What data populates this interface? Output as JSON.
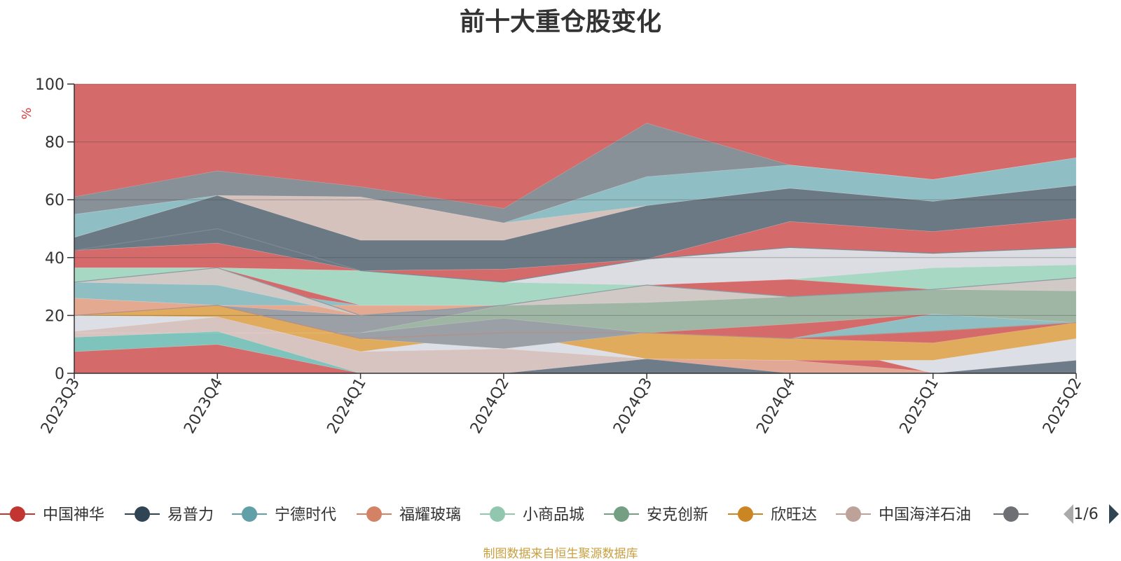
{
  "chart_data": {
    "type": "area",
    "title": "前十大重仓股变化",
    "ylabel": "%",
    "xlabel": "",
    "ylim": [
      0,
      100
    ],
    "yticks": [
      "0",
      "20",
      "40",
      "60",
      "80",
      "100"
    ],
    "categories": [
      "2023Q3",
      "2023Q4",
      "2024Q1",
      "2024Q2",
      "2024Q3",
      "2024Q4",
      "2025Q1",
      "2025Q2"
    ],
    "grid": true,
    "legend_position": "bottom",
    "layers": [
      {
        "color": "#d46a6a",
        "lower": [
          7.5,
          10,
          0,
          0,
          0,
          0,
          0,
          0
        ],
        "upper": [
          7.5,
          10,
          0,
          0,
          0,
          0,
          0,
          0
        ]
      },
      {
        "color": "#7fc4bc",
        "lower": [
          7.5,
          10,
          0,
          0,
          0,
          0,
          0,
          0
        ],
        "upper": [
          12.5,
          14.5,
          7.5,
          0,
          0,
          0,
          0,
          0
        ]
      },
      {
        "color": "#d7c3bf",
        "lower": [
          12.5,
          14.5,
          0,
          0,
          5,
          4.5,
          0,
          0
        ],
        "upper": [
          14.5,
          19.5,
          7.5,
          8.5,
          5,
          4.5,
          0,
          0
        ]
      },
      {
        "color": "#e2a896",
        "lower": [
          0,
          0,
          0,
          0,
          0,
          0,
          0,
          0
        ],
        "upper": [
          0,
          0,
          0,
          0,
          5,
          4.5,
          0.5,
          0
        ]
      },
      {
        "color": "#6e7b88",
        "lower": [
          0,
          0,
          0,
          0,
          0,
          0,
          0,
          0
        ],
        "upper": [
          0,
          0,
          0,
          0,
          5,
          0,
          0,
          4.5
        ]
      },
      {
        "color": "#dcdfe5",
        "lower": [
          14.5,
          19.5,
          7.5,
          8.5,
          5,
          12,
          0,
          4.5
        ],
        "upper": [
          20,
          19.5,
          7.5,
          14,
          5,
          12,
          4.5,
          12
        ]
      },
      {
        "color": "#e0ab5c",
        "lower": [
          20,
          19.5,
          7.5,
          14,
          5,
          4.5,
          4.5,
          12
        ],
        "upper": [
          20,
          23.5,
          12,
          14,
          14,
          12,
          10.5,
          17.5
        ]
      },
      {
        "color": "#9aa0a6",
        "lower": [
          20,
          23.5,
          12,
          8.5,
          14,
          12,
          14.5,
          17.5
        ],
        "upper": [
          26,
          23.5,
          20,
          23.5,
          14,
          12,
          14.5,
          17.5
        ]
      },
      {
        "color": "#e3a991",
        "lower": [
          20,
          23.5,
          20,
          23.5,
          14,
          12,
          14.5,
          17.5
        ],
        "upper": [
          26,
          23.5,
          23.5,
          23.5,
          14,
          12,
          14.5,
          17.5
        ]
      },
      {
        "color": "#90bfc3",
        "lower": [
          26,
          23.5,
          23.5,
          23.5,
          14,
          12,
          14.5,
          17.5
        ],
        "upper": [
          31.5,
          30.5,
          23.5,
          23.5,
          14,
          12,
          20.5,
          17.5
        ]
      },
      {
        "color": "#9fb6a5",
        "lower": [
          14,
          14,
          14,
          19,
          14,
          17,
          20.5,
          17.5
        ],
        "upper": [
          14,
          14,
          14,
          23.5,
          24.5,
          26.5,
          29,
          28.5
        ]
      },
      {
        "color": "#d0c9c5",
        "lower": [
          31.5,
          30.5,
          20,
          23.5,
          24.5,
          26.5,
          29,
          28.5
        ],
        "upper": [
          31.5,
          36.5,
          20,
          23.5,
          30.5,
          26.5,
          29,
          33
        ]
      },
      {
        "color": "#a6d8c4",
        "lower": [
          31.5,
          36.5,
          23.5,
          23.5,
          30.5,
          32.5,
          29,
          33
        ],
        "upper": [
          36.5,
          36.5,
          35.5,
          31.5,
          30.5,
          32.5,
          36.5,
          37.5
        ]
      },
      {
        "color": "#dbdde2",
        "lower": [
          36.5,
          36.5,
          35.5,
          31.5,
          30.5,
          32.5,
          36.5,
          37.5
        ],
        "upper": [
          36.5,
          36.5,
          35.5,
          31.5,
          39.5,
          43.5,
          41.5,
          43.5
        ]
      },
      {
        "color": "#d46a6a",
        "lower": [
          36.5,
          36.5,
          35.5,
          31.5,
          39.5,
          43.5,
          41.5,
          43.5
        ],
        "upper": [
          42.5,
          45,
          35.5,
          36,
          39.5,
          52.5,
          49,
          53.5
        ]
      },
      {
        "color": "#6a7984",
        "lower": [
          42.5,
          45,
          35.5,
          36,
          39.5,
          52.5,
          49,
          53.5
        ],
        "upper": [
          47,
          61.5,
          46,
          46,
          58,
          64,
          59.5,
          65
        ]
      },
      {
        "color": "#d5c2bd",
        "lower": [
          47,
          61.5,
          46,
          46,
          58,
          64,
          59.5,
          65
        ],
        "upper": [
          47,
          61.5,
          61,
          52,
          58,
          64,
          59.5,
          65
        ]
      },
      {
        "color": "#8fbfc4",
        "lower": [
          47,
          61.5,
          61,
          52,
          58,
          64,
          59.5,
          65
        ],
        "upper": [
          55,
          61.5,
          61,
          52,
          68,
          72,
          67,
          74.5
        ]
      },
      {
        "color": "#889098",
        "lower": [
          55,
          61.5,
          61,
          52,
          68,
          72,
          67,
          74.5
        ],
        "upper": [
          61,
          70,
          64.5,
          57,
          86.5,
          72,
          67,
          74.5
        ]
      }
    ],
    "lines": [
      {
        "color": "#7d8a94",
        "values": [
          42.5,
          50,
          35.5,
          31.5,
          39.5,
          43.5,
          41.5,
          43.5
        ]
      },
      {
        "color": "#b58f86",
        "values": [
          20,
          23.5,
          12,
          14,
          14,
          12,
          14.5,
          17.5
        ]
      },
      {
        "color": "#8d9aa3",
        "values": [
          31.5,
          36.5,
          20,
          23.5,
          30.5,
          26.5,
          29,
          33
        ]
      }
    ]
  },
  "legend": {
    "items": [
      {
        "name": "中国神华",
        "color": "#c23531"
      },
      {
        "name": "易普力",
        "color": "#2f4554"
      },
      {
        "name": "宁德时代",
        "color": "#61a0a8"
      },
      {
        "name": "福耀玻璃",
        "color": "#d48265"
      },
      {
        "name": "小商品城",
        "color": "#91c7ae"
      },
      {
        "name": "安克创新",
        "color": "#749f83"
      },
      {
        "name": "欣旺达",
        "color": "#ca8622"
      },
      {
        "name": "中国海洋石油",
        "color": "#bda29a"
      },
      {
        "name": "",
        "color": "#6e7074"
      }
    ],
    "page": "1/6"
  },
  "footer": "制图数据来自恒生聚源数据库"
}
